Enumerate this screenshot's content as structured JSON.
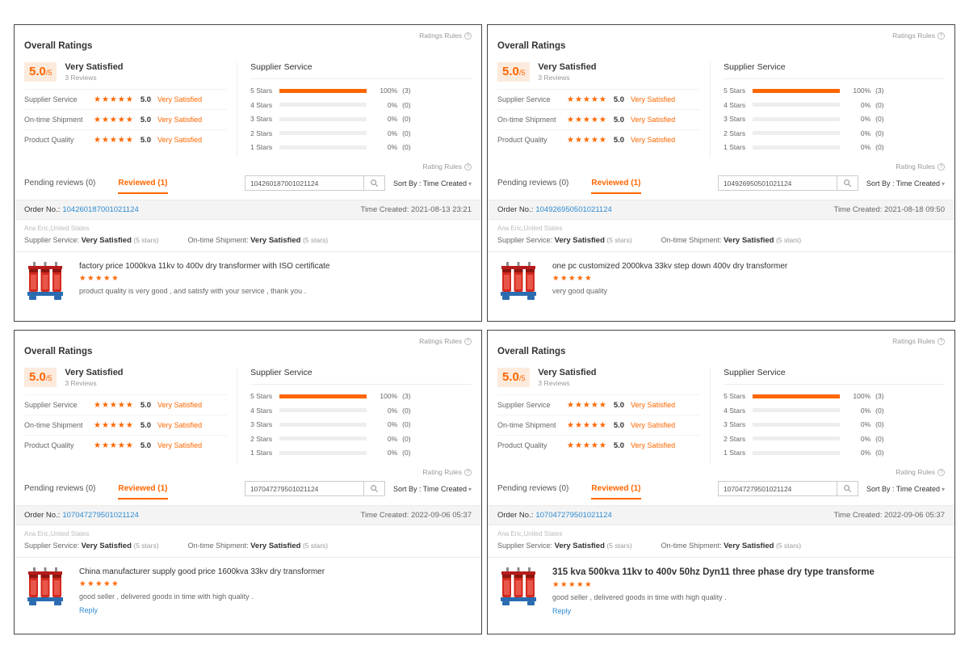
{
  "colors": {
    "accent": "#ff6600",
    "link": "#2e8bd0",
    "star": "#ff6600",
    "score_box_bg": "#fcebdd"
  },
  "icons": {
    "info": "?",
    "caret": "▾",
    "star": "★"
  },
  "shared": {
    "ratings_rules_label": "Ratings Rules",
    "rating_rules_label": "Rating Rules",
    "overall_title": "Overall Ratings",
    "score": "5.0",
    "score_max": "/5",
    "satisfaction": "Very Satisfied",
    "reviews_count": "3 Reviews",
    "stars": "★★★★★",
    "ratings_rows": [
      {
        "label": "Supplier Service",
        "score": "5.0",
        "text": "Very Satisfied"
      },
      {
        "label": "On-time Shipment",
        "score": "5.0",
        "text": "Very Satisfied"
      },
      {
        "label": "Product Quality",
        "score": "5.0",
        "text": "Very Satisfied"
      }
    ],
    "histogram": {
      "title": "Supplier Service",
      "rows": [
        {
          "label": "5 Stars",
          "pct": 100,
          "pct_label": "100%",
          "count_label": "(3)"
        },
        {
          "label": "4 Stars",
          "pct": 0,
          "pct_label": "0%",
          "count_label": "(0)"
        },
        {
          "label": "3 Stars",
          "pct": 0,
          "pct_label": "0%",
          "count_label": "(0)"
        },
        {
          "label": "2 Stars",
          "pct": 0,
          "pct_label": "0%",
          "count_label": "(0)"
        },
        {
          "label": "1 Stars",
          "pct": 0,
          "pct_label": "0%",
          "count_label": "(0)"
        }
      ]
    },
    "tabs": {
      "pending": "Pending reviews (0)",
      "reviewed": "Reviewed (1)"
    },
    "sort_by": "Sort By : Time Created",
    "order_label": "Order No.:",
    "time_label": "Time Created:",
    "buyer": "Ana Eric,United States",
    "supplier_service_label": "Supplier Service:",
    "ontime_label": "On-time Shipment:",
    "stars_suffix": "(5 stars)",
    "reply": "Reply"
  },
  "panels": [
    {
      "search_value": "104260187001021124",
      "order_no": "104260187001021124",
      "time_created": "2021-08-13 23:21",
      "product_title": "factory price 1000kva 11kv to 400v dry transformer with ISO certificate",
      "review_text": "product quality is very good , and satisfy with your service , thank you .",
      "has_reply": false,
      "title_bold": false
    },
    {
      "search_value": "104926950501021124",
      "order_no": "104926950501021124",
      "time_created": "2021-08-18 09:50",
      "product_title": "one pc customized 2000kva 33kv step down 400v dry transformer",
      "review_text": "very good quality",
      "has_reply": false,
      "title_bold": false
    },
    {
      "search_value": "107047279501021124",
      "order_no": "107047279501021124",
      "time_created": "2022-09-06 05:37",
      "product_title": "China manufacturer supply good price 1600kva 33kv dry transformer",
      "review_text": "good seller , delivered goods in time with high quality .",
      "has_reply": true,
      "title_bold": false
    },
    {
      "search_value": "107047279501021124",
      "order_no": "107047279501021124",
      "time_created": "2022-09-06 05:37",
      "product_title": "315 kva 500kva 11kv to 400v 50hz Dyn11 three phase dry type transforme",
      "review_text": "good seller , delivered goods in time with high quality .",
      "has_reply": true,
      "title_bold": true
    }
  ]
}
